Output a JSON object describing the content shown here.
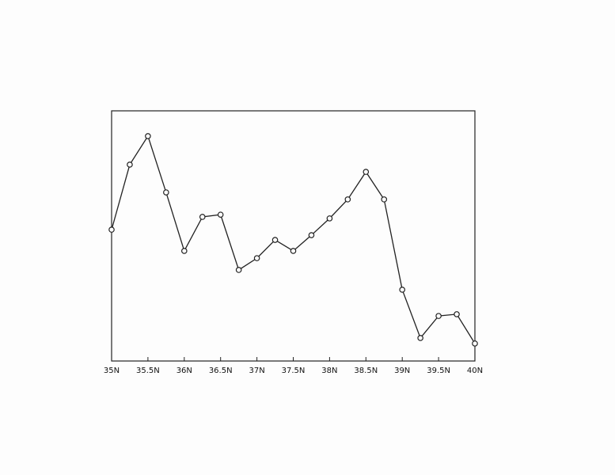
{
  "chart_data": {
    "type": "line",
    "title": "",
    "xlabel": "",
    "ylabel": "",
    "x": [
      35,
      35.25,
      35.5,
      35.75,
      36,
      36.25,
      36.5,
      36.75,
      37,
      37.25,
      37.5,
      37.75,
      38,
      38.25,
      38.5,
      38.75,
      39,
      39.25,
      39.5,
      39.75,
      40
    ],
    "xlim": [
      35,
      40
    ],
    "ylim": [
      0,
      100
    ],
    "y_ticks_labeled": false,
    "series": [
      {
        "values": [
          52.5,
          78.5,
          89.9,
          67.4,
          44.0,
          57.6,
          58.5,
          36.4,
          41.1,
          48.4,
          44.0,
          50.3,
          57.0,
          64.6,
          75.6,
          64.6,
          28.5,
          9.2,
          18.0,
          18.7,
          7.0
        ],
        "color": "#222222",
        "marker": "open-circle"
      }
    ],
    "x_ticks": [
      {
        "value": 35,
        "label": "35N"
      },
      {
        "value": 35.5,
        "label": "35.5N"
      },
      {
        "value": 36,
        "label": "36N"
      },
      {
        "value": 36.5,
        "label": "36.5N"
      },
      {
        "value": 37,
        "label": "37N"
      },
      {
        "value": 37.5,
        "label": "37.5N"
      },
      {
        "value": 38,
        "label": "38N"
      },
      {
        "value": 38.5,
        "label": "38.5N"
      },
      {
        "value": 39,
        "label": "39N"
      },
      {
        "value": 39.5,
        "label": "39.5N"
      },
      {
        "value": 40,
        "label": "40N"
      }
    ],
    "grid": false,
    "legend": "none"
  }
}
